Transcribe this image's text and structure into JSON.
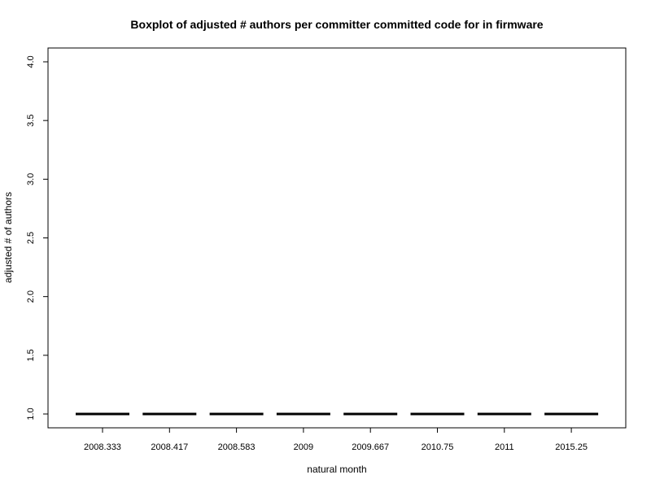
{
  "chart_data": {
    "type": "box",
    "title": "Boxplot of adjusted # authors per committer committed code for in firmware",
    "xlabel": "natural month",
    "ylabel": "adjusted # of authors",
    "categories": [
      "2008.333",
      "2008.417",
      "2008.583",
      "2009",
      "2009.667",
      "2010.75",
      "2011",
      "2015.25"
    ],
    "series": [
      {
        "values": [
          1.0,
          1.0,
          1.0,
          1.0,
          1.0,
          1.0,
          1.0,
          1.0
        ]
      }
    ],
    "ylim": [
      1.0,
      4.0
    ],
    "yticks": [
      "1.0",
      "1.5",
      "2.0",
      "2.5",
      "3.0",
      "3.5",
      "4.0"
    ],
    "grid": false,
    "line_color": "#000000"
  }
}
